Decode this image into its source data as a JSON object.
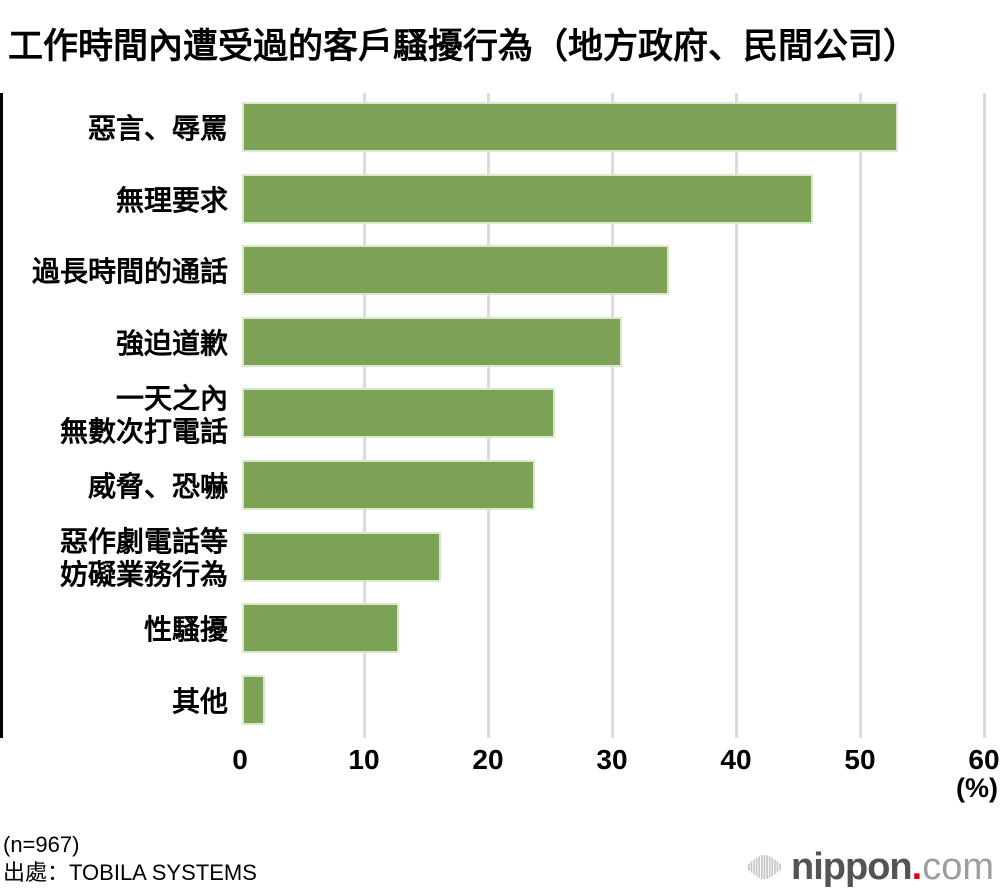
{
  "title": "工作時間內遭受過的客戶騷擾行為（地方政府、民間公司）",
  "chart_data": {
    "type": "bar",
    "orientation": "horizontal",
    "title": "工作時間內遭受過的客戶騷擾行為（地方政府、民間公司）",
    "categories": [
      "惡言、辱罵",
      "無理要求",
      "過長時間的通話",
      "強迫道歉",
      "一天之內\n無數次打電話",
      "威脅、恐嚇",
      "惡作劇電話等\n妨礙業務行為",
      "性騷擾",
      "其他"
    ],
    "values": [
      53.1,
      46.2,
      34.6,
      30.8,
      25.4,
      23.8,
      16.2,
      12.8,
      2.0
    ],
    "xlim": [
      0,
      60
    ],
    "xticks": [
      0,
      10,
      20,
      30,
      40,
      50,
      60
    ],
    "xlabel": "(%)",
    "ylabel": "",
    "grid": true,
    "legend_position": "none",
    "bar_color": "#7ca355",
    "bar_edge_color": "#dbe7cc",
    "grid_color": "#dcdcdc",
    "axis_color": "#000000"
  },
  "footer": {
    "sample_size": "(n=967)",
    "source": "出處：TOBILA SYSTEMS"
  },
  "logo": {
    "brand": "nippon",
    "dot": ".",
    "tld": "com",
    "brand_color": "#545454",
    "dot_color": "#e60012",
    "tld_color": "#9c9d9e",
    "icon": "soundwave-sphere-icon",
    "icon_color": "#c6c7c8"
  }
}
